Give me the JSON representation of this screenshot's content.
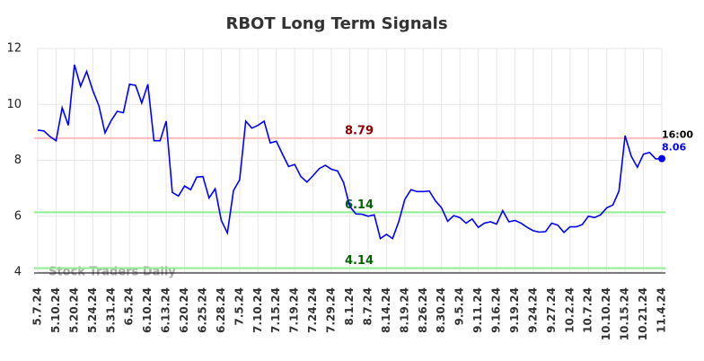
{
  "chart_data": {
    "type": "line",
    "title": "RBOT Long Term Signals",
    "categories": [
      "5.7.24",
      null,
      null,
      "5.10.24",
      null,
      null,
      "5.20.24",
      null,
      null,
      "5.24.24",
      null,
      null,
      "5.31.24",
      null,
      null,
      "6.5.24",
      null,
      null,
      "6.10.24",
      null,
      null,
      "6.13.24",
      null,
      null,
      "6.20.24",
      null,
      null,
      "6.25.24",
      null,
      null,
      "6.28.24",
      null,
      null,
      "7.5.24",
      null,
      null,
      "7.10.24",
      null,
      null,
      "7.15.24",
      null,
      null,
      "7.19.24",
      null,
      null,
      "7.24.24",
      null,
      null,
      "7.29.24",
      null,
      null,
      "8.1.24",
      null,
      null,
      "8.7.24",
      null,
      null,
      "8.14.24",
      null,
      null,
      "8.19.24",
      null,
      null,
      "8.26.24",
      null,
      null,
      "8.30.24",
      null,
      null,
      "9.5.24",
      null,
      null,
      "9.11.24",
      null,
      null,
      "9.16.24",
      null,
      null,
      "9.19.24",
      null,
      null,
      "9.24.24",
      null,
      null,
      "9.27.24",
      null,
      null,
      "10.2.24",
      null,
      null,
      "10.7.24",
      null,
      null,
      "10.10.24",
      null,
      null,
      "10.15.24",
      null,
      null,
      "10.21.24",
      null,
      null,
      "11.4.24"
    ],
    "values": [
      9.08,
      9.05,
      8.85,
      8.7,
      9.88,
      9.25,
      11.42,
      10.65,
      11.18,
      10.5,
      9.95,
      8.98,
      9.42,
      9.75,
      9.7,
      10.72,
      10.68,
      10.05,
      10.72,
      8.7,
      8.7,
      9.4,
      6.85,
      6.72,
      7.08,
      6.95,
      7.4,
      7.42,
      6.65,
      6.98,
      5.85,
      5.4,
      6.92,
      7.3,
      9.4,
      9.15,
      9.25,
      9.4,
      8.62,
      8.68,
      8.22,
      7.78,
      7.85,
      7.42,
      7.22,
      7.45,
      7.7,
      7.82,
      7.68,
      7.62,
      7.2,
      6.35,
      6.08,
      6.07,
      6.0,
      6.05,
      5.2,
      5.35,
      5.2,
      5.8,
      6.6,
      6.95,
      6.88,
      6.88,
      6.9,
      6.55,
      6.3,
      5.82,
      6.02,
      5.95,
      5.75,
      5.9,
      5.6,
      5.75,
      5.8,
      5.72,
      6.2,
      5.8,
      5.85,
      5.75,
      5.6,
      5.48,
      5.43,
      5.45,
      5.75,
      5.68,
      5.42,
      5.62,
      5.62,
      5.7,
      6.0,
      5.95,
      6.05,
      6.3,
      6.4,
      6.9,
      8.88,
      8.15,
      7.75,
      8.22,
      8.28,
      8.05,
      8.06
    ],
    "color": "#0000ff",
    "ylim": [
      4,
      12
    ],
    "yticks": [
      4,
      6,
      8,
      10,
      12
    ],
    "grid": true,
    "hlines": [
      {
        "value": 8.79,
        "color": "#ffbbbb",
        "label_color": "#8b0000"
      },
      {
        "value": 6.14,
        "color": "#90ee90",
        "label_color": "#006400"
      },
      {
        "value": 4.14,
        "color": "#90ee90",
        "label_color": "#006400"
      }
    ],
    "last_time": "16:00",
    "watermark": "Stock Traders Daily"
  }
}
